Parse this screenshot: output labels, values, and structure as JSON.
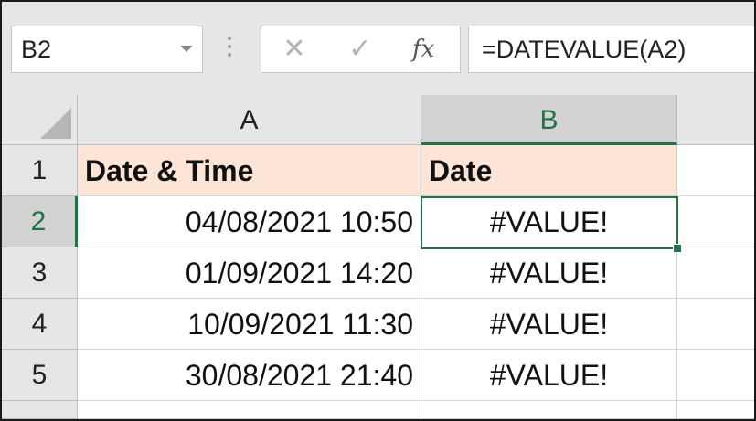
{
  "formula_bar": {
    "name_box": "B2",
    "cancel_glyph": "✕",
    "enter_glyph": "✓",
    "fx_label": "fx",
    "formula": "=DATEVALUE(A2)"
  },
  "columns": [
    {
      "label": "A",
      "selected": false
    },
    {
      "label": "B",
      "selected": true
    }
  ],
  "rows": [
    {
      "num": "1",
      "a": "Date & Time",
      "b": "Date"
    },
    {
      "num": "2",
      "a": "04/08/2021 10:50",
      "b": "#VALUE!"
    },
    {
      "num": "3",
      "a": "01/09/2021 14:20",
      "b": "#VALUE!"
    },
    {
      "num": "4",
      "a": "10/09/2021 11:30",
      "b": "#VALUE!"
    },
    {
      "num": "5",
      "a": "30/08/2021 21:40",
      "b": "#VALUE!"
    }
  ],
  "selected_cell": "B2",
  "colors": {
    "accent": "#217346",
    "header_fill": "#fce4d6",
    "chrome": "#e6e6e6"
  }
}
